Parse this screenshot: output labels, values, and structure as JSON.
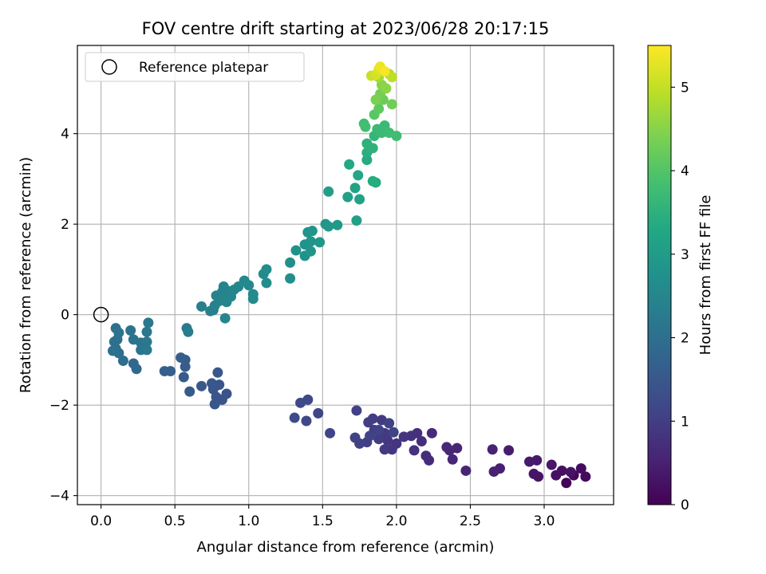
{
  "chart_data": {
    "type": "scatter",
    "title": "FOV centre drift starting at 2023/06/28 20:17:15",
    "xlabel": "Angular distance from reference (arcmin)",
    "ylabel": "Rotation from reference (arcmin)",
    "xlim": [
      -0.16,
      3.47
    ],
    "ylim": [
      -4.2,
      5.95
    ],
    "xticks": [
      0.0,
      0.5,
      1.0,
      1.5,
      2.0,
      2.5,
      3.0
    ],
    "xtick_labels": [
      "0.0",
      "0.5",
      "1.0",
      "1.5",
      "2.0",
      "2.5",
      "3.0"
    ],
    "yticks": [
      -4,
      -2,
      0,
      2,
      4
    ],
    "ytick_labels": [
      "−4",
      "−2",
      "0",
      "2",
      "4"
    ],
    "grid": true,
    "legend": {
      "placement": "top-left",
      "entries": [
        "Reference platepar"
      ]
    },
    "reference_point": {
      "x": 0.0,
      "y": 0.0
    },
    "colorbar": {
      "label": "Hours from first FF file",
      "range": [
        0,
        5.5
      ],
      "ticks": [
        0,
        1,
        2,
        3,
        4,
        5
      ],
      "tick_labels": [
        "0",
        "1",
        "2",
        "3",
        "4",
        "5"
      ],
      "colormap": "viridis"
    },
    "points": [
      [
        3.15,
        -3.72,
        0.05
      ],
      [
        3.2,
        -3.55,
        0.12
      ],
      [
        3.28,
        -3.58,
        0.15
      ],
      [
        3.25,
        -3.4,
        0.18
      ],
      [
        3.12,
        -3.45,
        0.22
      ],
      [
        3.08,
        -3.55,
        0.25
      ],
      [
        3.18,
        -3.48,
        0.28
      ],
      [
        2.96,
        -3.58,
        0.3
      ],
      [
        2.93,
        -3.52,
        0.32
      ],
      [
        3.05,
        -3.32,
        0.35
      ],
      [
        2.95,
        -3.22,
        0.38
      ],
      [
        2.9,
        -3.25,
        0.4
      ],
      [
        2.76,
        -3.0,
        0.45
      ],
      [
        2.7,
        -3.4,
        0.48
      ],
      [
        2.66,
        -3.47,
        0.5
      ],
      [
        2.65,
        -2.98,
        0.52
      ],
      [
        2.47,
        -3.45,
        0.55
      ],
      [
        2.41,
        -2.95,
        0.58
      ],
      [
        2.38,
        -3.2,
        0.6
      ],
      [
        2.36,
        -3.0,
        0.62
      ],
      [
        2.34,
        -2.93,
        0.64
      ],
      [
        2.24,
        -2.62,
        0.66
      ],
      [
        2.22,
        -3.22,
        0.68
      ],
      [
        2.2,
        -3.12,
        0.7
      ],
      [
        2.17,
        -2.8,
        0.72
      ],
      [
        2.14,
        -2.62,
        0.75
      ],
      [
        2.12,
        -3.0,
        0.77
      ],
      [
        2.1,
        -2.68,
        0.79
      ],
      [
        2.05,
        -2.7,
        0.82
      ],
      [
        2.0,
        -2.85,
        0.85
      ],
      [
        1.97,
        -2.98,
        0.87
      ],
      [
        1.94,
        -2.78,
        0.9
      ],
      [
        1.92,
        -2.62,
        0.92
      ],
      [
        1.9,
        -2.33,
        0.94
      ],
      [
        1.92,
        -2.98,
        0.95
      ],
      [
        1.88,
        -2.75,
        0.96
      ],
      [
        1.85,
        -2.55,
        0.98
      ],
      [
        1.84,
        -2.3,
        1.0
      ],
      [
        1.81,
        -2.38,
        1.02
      ],
      [
        1.8,
        -2.82,
        1.03
      ],
      [
        1.75,
        -2.85,
        1.05
      ],
      [
        1.72,
        -2.72,
        1.06
      ],
      [
        1.73,
        -2.12,
        1.07
      ],
      [
        1.88,
        -2.55,
        1.08
      ],
      [
        1.95,
        -2.4,
        1.08
      ],
      [
        1.82,
        -2.68,
        1.09
      ],
      [
        1.98,
        -2.6,
        1.09
      ],
      [
        1.55,
        -2.62,
        1.1
      ],
      [
        1.47,
        -2.18,
        1.15
      ],
      [
        1.4,
        -1.88,
        1.18
      ],
      [
        1.39,
        -2.35,
        1.2
      ],
      [
        1.35,
        -1.95,
        1.22
      ],
      [
        1.31,
        -2.28,
        1.25
      ],
      [
        0.85,
        -1.75,
        1.4
      ],
      [
        0.82,
        -1.88,
        1.42
      ],
      [
        0.8,
        -1.55,
        1.44
      ],
      [
        0.78,
        -1.82,
        1.45
      ],
      [
        0.77,
        -1.98,
        1.46
      ],
      [
        0.76,
        -1.65,
        1.47
      ],
      [
        0.79,
        -1.28,
        1.48
      ],
      [
        0.75,
        -1.52,
        1.49
      ],
      [
        0.68,
        -1.58,
        1.5
      ],
      [
        0.6,
        -1.7,
        1.55
      ],
      [
        0.57,
        -1.15,
        1.57
      ],
      [
        0.56,
        -1.38,
        1.58
      ],
      [
        0.57,
        -1.0,
        1.6
      ],
      [
        0.54,
        -0.95,
        1.62
      ],
      [
        0.47,
        -1.25,
        1.65
      ],
      [
        0.43,
        -1.25,
        1.67
      ],
      [
        0.24,
        -1.2,
        1.85
      ],
      [
        0.22,
        -1.08,
        1.88
      ],
      [
        0.15,
        -1.02,
        1.95
      ],
      [
        0.12,
        -0.85,
        1.98
      ],
      [
        0.1,
        -0.75,
        2.0
      ],
      [
        0.08,
        -0.8,
        2.02
      ],
      [
        0.09,
        -0.6,
        2.03
      ],
      [
        0.11,
        -0.55,
        2.04
      ],
      [
        0.1,
        -0.3,
        2.05
      ],
      [
        0.12,
        -0.4,
        2.06
      ],
      [
        0.2,
        -0.35,
        2.08
      ],
      [
        0.22,
        -0.55,
        2.1
      ],
      [
        0.27,
        -0.62,
        2.12
      ],
      [
        0.27,
        -0.78,
        2.14
      ],
      [
        0.3,
        -0.72,
        2.16
      ],
      [
        0.31,
        -0.6,
        2.17
      ],
      [
        0.31,
        -0.38,
        2.18
      ],
      [
        0.32,
        -0.18,
        2.19
      ],
      [
        0.31,
        -0.78,
        2.2
      ],
      [
        0.58,
        -0.3,
        2.25
      ],
      [
        0.59,
        -0.38,
        2.27
      ],
      [
        0.68,
        0.18,
        2.35
      ],
      [
        0.74,
        0.08,
        2.38
      ],
      [
        0.76,
        0.1,
        2.4
      ],
      [
        0.77,
        0.2,
        2.42
      ],
      [
        0.78,
        0.42,
        2.43
      ],
      [
        0.8,
        0.3,
        2.44
      ],
      [
        0.82,
        0.5,
        2.45
      ],
      [
        0.84,
        0.38,
        2.46
      ],
      [
        0.83,
        0.62,
        2.47
      ],
      [
        0.85,
        0.28,
        2.48
      ],
      [
        0.86,
        0.52,
        2.49
      ],
      [
        0.88,
        0.4,
        2.5
      ],
      [
        0.9,
        0.55,
        2.51
      ],
      [
        0.84,
        -0.08,
        2.52
      ],
      [
        0.93,
        0.62,
        2.53
      ],
      [
        0.97,
        0.75,
        2.55
      ],
      [
        1.0,
        0.65,
        2.57
      ],
      [
        1.03,
        0.45,
        2.58
      ],
      [
        1.03,
        0.35,
        2.59
      ],
      [
        1.1,
        0.9,
        2.62
      ],
      [
        1.12,
        1.0,
        2.64
      ],
      [
        1.12,
        0.7,
        2.65
      ],
      [
        1.28,
        0.8,
        2.7
      ],
      [
        1.28,
        1.15,
        2.72
      ],
      [
        1.32,
        1.42,
        2.74
      ],
      [
        1.38,
        1.3,
        2.76
      ],
      [
        1.38,
        1.55,
        2.78
      ],
      [
        1.4,
        1.82,
        2.8
      ],
      [
        1.43,
        1.85,
        2.82
      ],
      [
        1.42,
        1.62,
        2.83
      ],
      [
        1.42,
        1.4,
        2.84
      ],
      [
        1.48,
        1.6,
        2.86
      ],
      [
        1.52,
        2.0,
        2.9
      ],
      [
        1.54,
        1.95,
        2.92
      ],
      [
        1.6,
        1.98,
        2.95
      ],
      [
        1.54,
        2.72,
        3.05
      ],
      [
        1.67,
        2.6,
        3.1
      ],
      [
        1.73,
        2.08,
        3.12
      ],
      [
        1.75,
        2.55,
        3.15
      ],
      [
        1.72,
        2.8,
        3.18
      ],
      [
        1.74,
        3.08,
        3.25
      ],
      [
        1.68,
        3.32,
        3.3
      ],
      [
        1.8,
        3.42,
        3.35
      ],
      [
        1.84,
        2.95,
        3.38
      ],
      [
        1.86,
        2.92,
        3.4
      ],
      [
        1.8,
        3.58,
        3.45
      ],
      [
        1.8,
        3.78,
        3.5
      ],
      [
        1.84,
        3.68,
        3.55
      ],
      [
        1.85,
        3.95,
        3.62
      ],
      [
        1.87,
        4.1,
        3.68
      ],
      [
        1.9,
        4.02,
        3.7
      ],
      [
        1.92,
        4.18,
        3.72
      ],
      [
        1.95,
        4.02,
        3.75
      ],
      [
        2.0,
        3.95,
        3.78
      ],
      [
        1.78,
        4.22,
        3.8
      ],
      [
        1.79,
        4.15,
        3.82
      ],
      [
        1.85,
        4.42,
        4.05
      ],
      [
        1.88,
        4.55,
        4.12
      ],
      [
        1.91,
        4.75,
        4.25
      ],
      [
        1.97,
        4.65,
        4.3
      ],
      [
        1.89,
        4.88,
        4.35
      ],
      [
        1.86,
        4.75,
        4.4
      ],
      [
        1.9,
        5.08,
        4.5
      ],
      [
        1.93,
        5.0,
        4.55
      ],
      [
        1.88,
        5.25,
        4.7
      ],
      [
        1.95,
        5.32,
        4.85
      ],
      [
        1.97,
        5.25,
        4.95
      ],
      [
        1.83,
        5.28,
        5.05
      ],
      [
        1.86,
        5.3,
        5.15
      ],
      [
        1.88,
        5.42,
        5.25
      ],
      [
        1.89,
        5.48,
        5.35
      ],
      [
        1.92,
        5.38,
        5.45
      ]
    ]
  }
}
